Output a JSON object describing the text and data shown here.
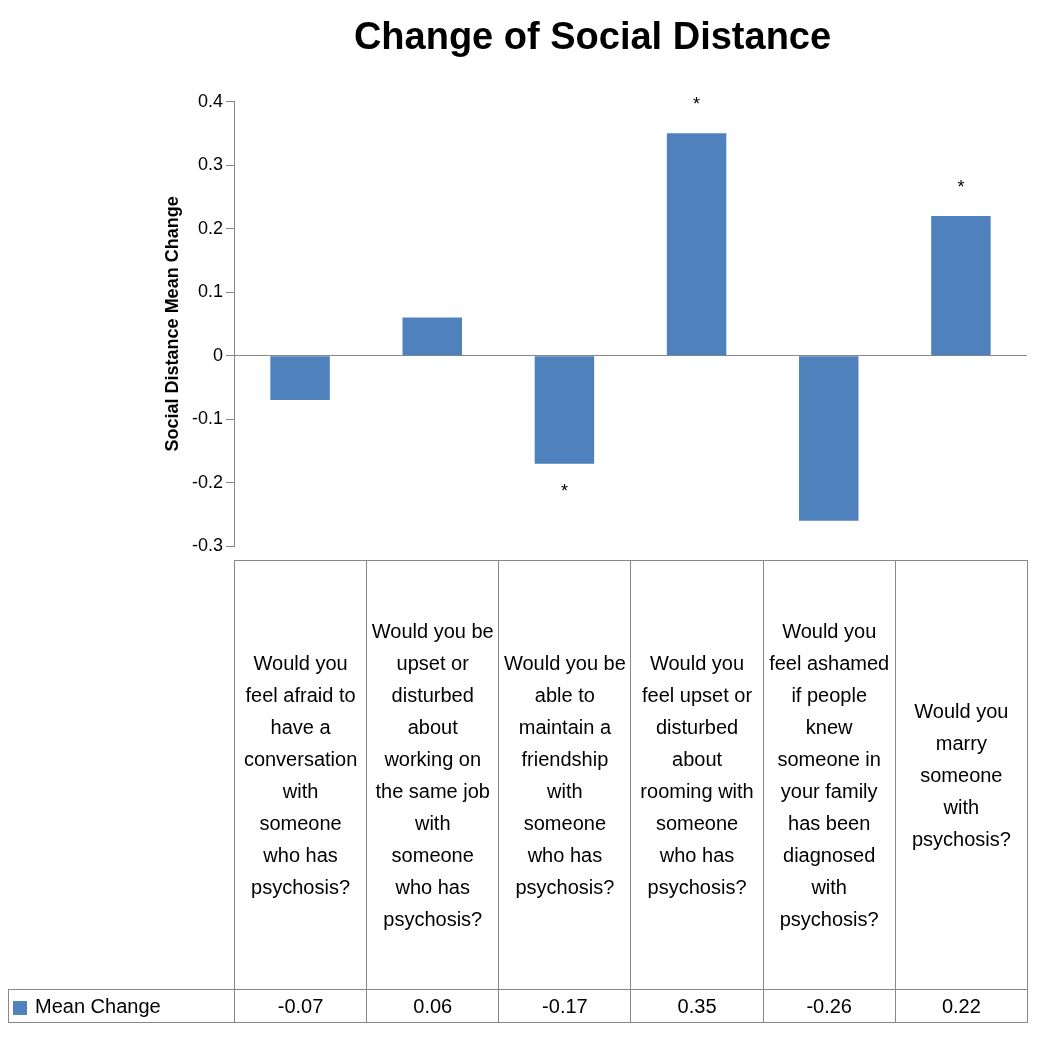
{
  "chart_data": {
    "type": "bar",
    "title": "Change of Social Distance",
    "ylabel": "Social Distance Mean Change",
    "categories": [
      "Would you feel afraid to have a conversation with someone who has psychosis?",
      "Would you be upset or disturbed about working on the same job with someone who has psychosis?",
      "Would you be able to maintain a friendship with someone who has psychosis?",
      "Would you feel upset or disturbed about rooming with someone who has psychosis?",
      "Would you feel ashamed if people knew someone in your family has been diagnosed with psychosis?",
      "Would you marry someone with psychosis?"
    ],
    "series": [
      {
        "name": "Mean Change",
        "color": "#4f81bd",
        "values": [
          -0.07,
          0.06,
          -0.17,
          0.35,
          -0.26,
          0.22
        ]
      }
    ],
    "ylim": [
      -0.3,
      0.4
    ],
    "yticks": [
      -0.3,
      -0.2,
      -0.1,
      0,
      0.1,
      0.2,
      0.3,
      0.4
    ],
    "data_labels": true,
    "legend": "bottom left",
    "annotations": [
      {
        "text": "*",
        "x": "Would you be able to maintain a friendship with someone who has psychosis?",
        "y": -0.17
      },
      {
        "text": "*",
        "x": "Would you feel upset or disturbed about rooming with someone who has psychosis?",
        "y": 0.35
      },
      {
        "text": "*",
        "x": "Would you marry someone with psychosis?",
        "y": 0.22
      }
    ]
  }
}
